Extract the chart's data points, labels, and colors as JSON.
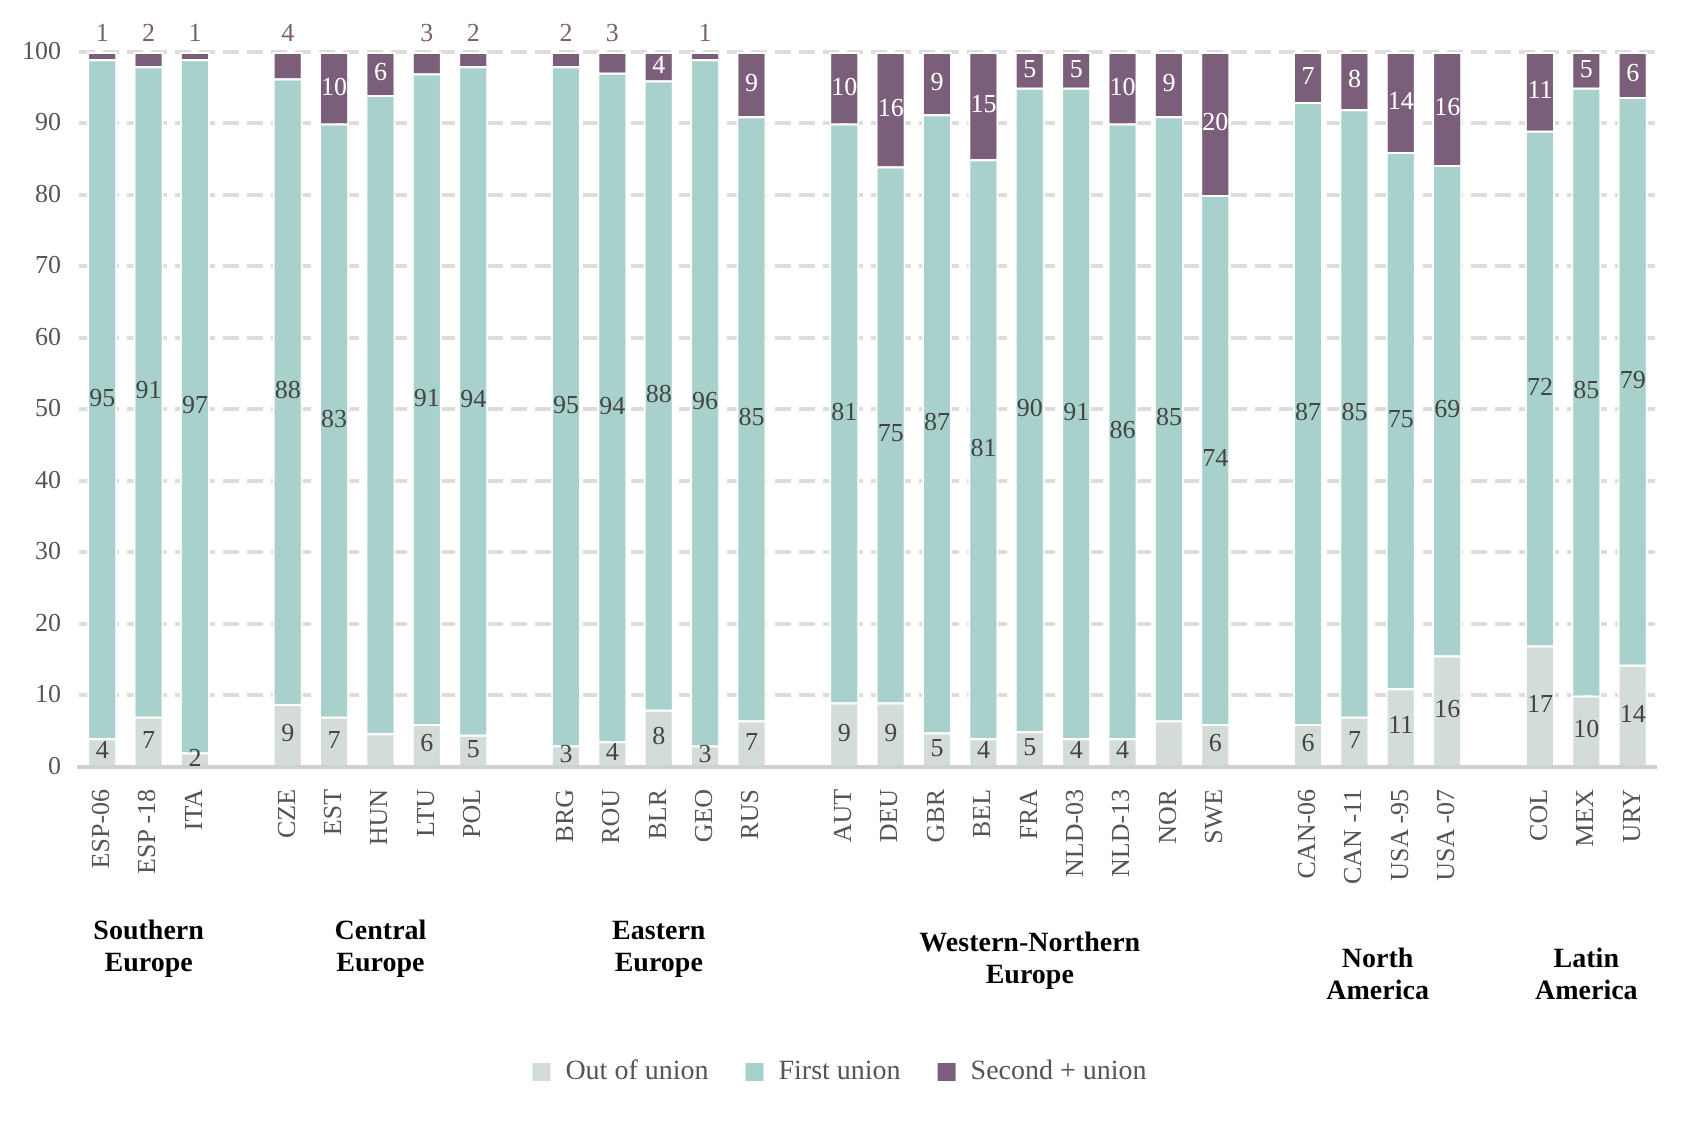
{
  "chart_data": {
    "type": "bar",
    "stacked": true,
    "categories": [
      "ESP-06",
      "ESP -18",
      "ITA",
      null,
      "CZE",
      "EST",
      "HUN",
      "LTU",
      "POL",
      null,
      "BRG",
      "ROU",
      "BLR",
      "GEO",
      "RUS",
      null,
      "AUT",
      "DEU",
      "GBR",
      "BEL",
      "FRA",
      "NLD-03",
      "NLD-13",
      "NOR",
      "SWE",
      null,
      "CAN-06",
      "CAN -11",
      "USA -95",
      "USA -07",
      null,
      "COL",
      "MEX",
      "URY"
    ],
    "series": [
      {
        "name": "Out of union",
        "color": "#d3dcd9",
        "values": [
          4,
          7,
          2,
          null,
          8.8,
          7,
          4.7,
          6,
          4.5,
          null,
          3,
          3.6,
          8,
          3,
          6.5,
          null,
          9,
          9,
          4.8,
          4,
          5,
          4,
          4,
          6.5,
          6,
          null,
          6,
          7,
          11,
          15.6,
          null,
          17,
          10,
          14.3
        ],
        "value_labels": [
          "4",
          "7",
          "2",
          null,
          "9",
          "7",
          null,
          "6",
          "5",
          null,
          "3",
          "4",
          "8",
          "3",
          "7",
          null,
          "9",
          "9",
          "5",
          "4",
          "5",
          "4",
          "4",
          null,
          "6",
          null,
          "6",
          "7",
          "11",
          "16",
          null,
          "17",
          "10",
          "14"
        ]
      },
      {
        "name": "First union",
        "color": "#a8d1cc",
        "values": [
          95,
          91,
          97,
          null,
          87.5,
          83,
          89.3,
          91,
          93.5,
          null,
          95,
          93.5,
          88,
          96,
          84.5,
          null,
          81,
          75,
          86.5,
          81,
          90,
          91,
          86,
          84.5,
          74,
          null,
          87,
          85,
          75,
          68.6,
          null,
          72,
          85,
          79.4
        ],
        "value_labels": [
          "95",
          "91",
          "97",
          null,
          "88",
          "83",
          null,
          "91",
          "94",
          null,
          "95",
          "94",
          "88",
          "96",
          "85",
          null,
          "81",
          "75",
          "87",
          "81",
          "90",
          "91",
          "86",
          "85",
          "74",
          null,
          "87",
          "85",
          "75",
          "69",
          null,
          "72",
          "85",
          "79"
        ]
      },
      {
        "name": "Second + union",
        "color": "#7b5f7a",
        "values": [
          1,
          2,
          1,
          null,
          3.7,
          10,
          6,
          3,
          2,
          null,
          2,
          2.9,
          4,
          1,
          9,
          null,
          10,
          16,
          8.7,
          15,
          5,
          5,
          10,
          9,
          20,
          null,
          7,
          8,
          14,
          15.8,
          null,
          11,
          5,
          6.3
        ],
        "value_labels": [
          "1",
          "2",
          "1",
          null,
          "4",
          "10",
          "6",
          "3",
          "2",
          null,
          "2",
          "3",
          "4",
          "1",
          "9",
          null,
          "10",
          "16",
          "9",
          "15",
          "5",
          "5",
          "10",
          "9",
          "20",
          null,
          "7",
          "8",
          "14",
          "16",
          null,
          "11",
          "5",
          "6"
        ]
      }
    ],
    "ylim": [
      0,
      100
    ],
    "yticks": [
      0,
      10,
      20,
      30,
      40,
      50,
      60,
      70,
      80,
      90,
      100
    ],
    "grid": "y",
    "legend": "bottom",
    "annotations": [
      "Southern Europe",
      "Central Europe",
      "Eastern Europe",
      "Western-Northern Europe",
      "North America",
      "Latin America"
    ]
  }
}
